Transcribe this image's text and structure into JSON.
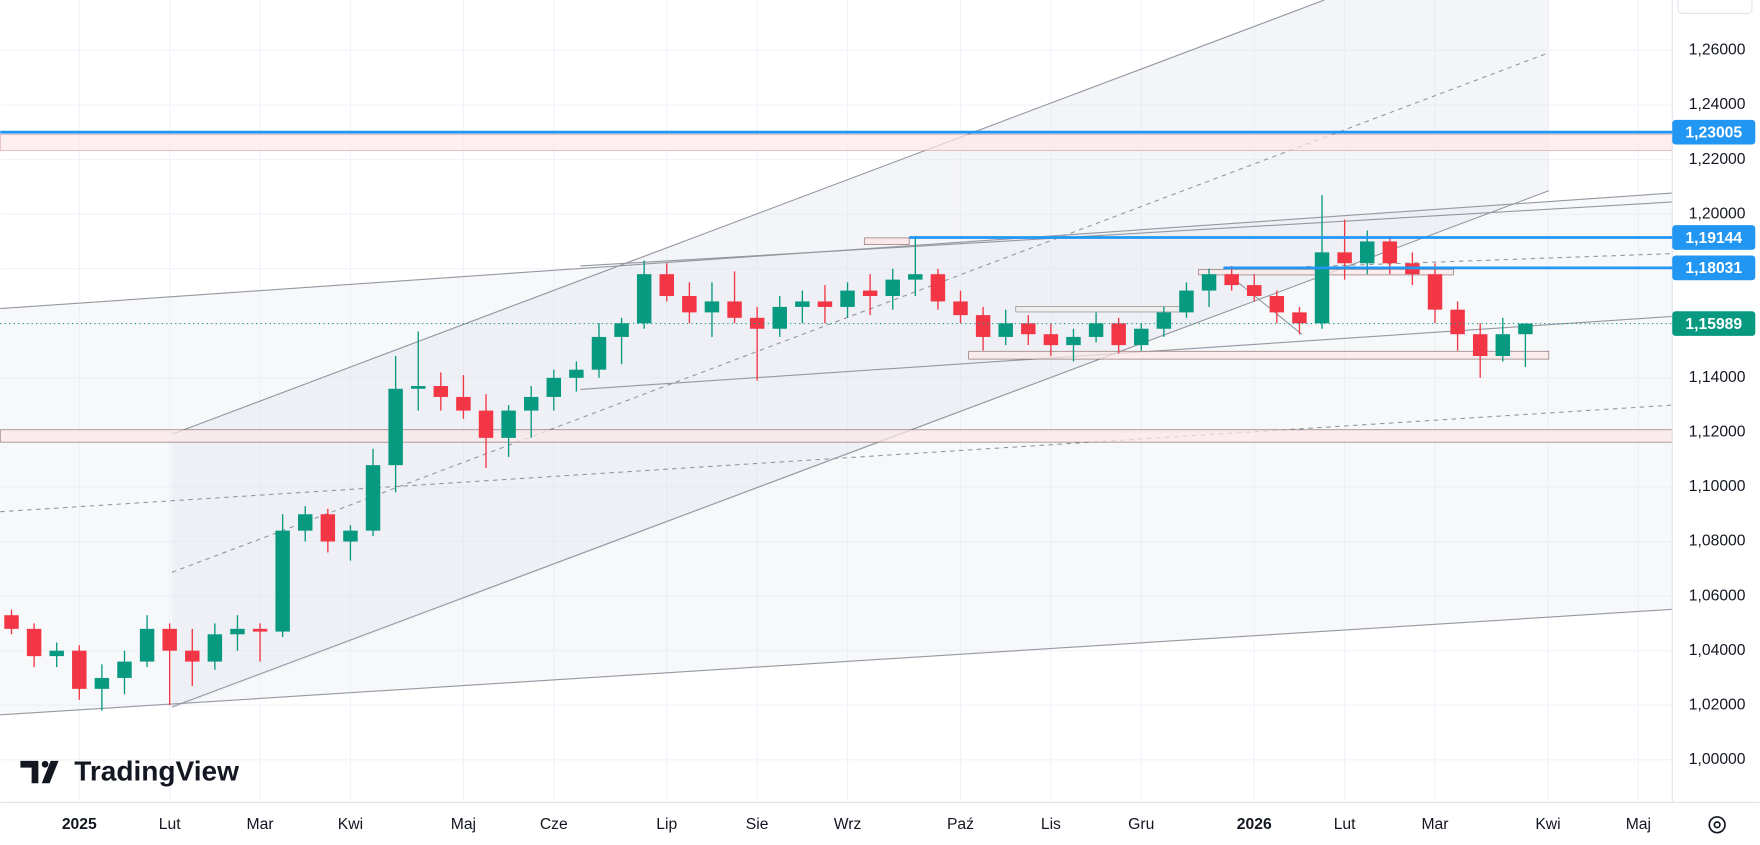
{
  "chart_data": {
    "type": "candlestick",
    "categories": [
      null,
      null,
      null,
      "2025",
      null,
      null,
      null,
      "Lut",
      null,
      null,
      null,
      "Mar",
      null,
      null,
      null,
      "Kwi",
      null,
      null,
      null,
      null,
      "Maj",
      null,
      null,
      null,
      "Cze",
      null,
      null,
      null,
      null,
      "Lip",
      null,
      null,
      null,
      "Sie",
      null,
      null,
      null,
      "Wrz",
      null,
      null,
      null,
      null,
      "Paź",
      null,
      null,
      null,
      "Lis",
      null,
      null,
      null,
      "Gru",
      null,
      null,
      null,
      null,
      "2026",
      null,
      null,
      null,
      "Lut",
      null,
      null,
      null,
      "Mar",
      null,
      null,
      null,
      null,
      "Kwi",
      null,
      null,
      null,
      "Maj",
      null
    ],
    "open": [
      1.053,
      1.048,
      1.038,
      1.04,
      1.026,
      1.03,
      1.036,
      1.048,
      1.04,
      1.036,
      1.046,
      1.048,
      1.047,
      1.084,
      1.09,
      1.08,
      1.084,
      1.108,
      1.136,
      1.137,
      1.133,
      1.128,
      1.118,
      1.128,
      1.133,
      1.14,
      1.143,
      1.155,
      1.16,
      1.178,
      1.17,
      1.164,
      1.168,
      1.162,
      1.158,
      1.166,
      1.168,
      1.166,
      1.172,
      1.17,
      1.176,
      1.178,
      1.168,
      1.163,
      1.155,
      1.16,
      1.156,
      1.152,
      1.155,
      1.16,
      1.152,
      1.158,
      1.164,
      1.172,
      1.178,
      1.174,
      1.17,
      1.164,
      1.16,
      1.186,
      1.182,
      1.19,
      1.182,
      1.178,
      1.165,
      1.156,
      1.148,
      1.156,
      null,
      null,
      null,
      null,
      null,
      null
    ],
    "high": [
      1.055,
      1.05,
      1.043,
      1.042,
      1.035,
      1.04,
      1.053,
      1.05,
      1.048,
      1.05,
      1.053,
      1.05,
      1.09,
      1.093,
      1.092,
      1.086,
      1.114,
      1.148,
      1.157,
      1.142,
      1.141,
      1.134,
      1.13,
      1.137,
      1.143,
      1.146,
      1.16,
      1.162,
      1.183,
      1.182,
      1.175,
      1.175,
      1.179,
      1.166,
      1.17,
      1.172,
      1.174,
      1.175,
      1.178,
      1.18,
      1.192,
      1.18,
      1.172,
      1.166,
      1.165,
      1.163,
      1.16,
      1.158,
      1.164,
      1.162,
      1.16,
      1.166,
      1.175,
      1.18,
      1.181,
      1.178,
      1.172,
      1.166,
      1.207,
      1.198,
      1.194,
      1.192,
      1.186,
      1.182,
      1.168,
      1.16,
      1.162,
      1.16,
      null,
      null,
      null,
      null,
      null,
      null
    ],
    "low": [
      1.046,
      1.034,
      1.034,
      1.022,
      1.018,
      1.024,
      1.034,
      1.02,
      1.027,
      1.033,
      1.04,
      1.036,
      1.045,
      1.08,
      1.076,
      1.073,
      1.082,
      1.098,
      1.128,
      1.128,
      1.125,
      1.107,
      1.111,
      1.118,
      1.128,
      1.135,
      1.14,
      1.145,
      1.158,
      1.168,
      1.16,
      1.155,
      1.16,
      1.139,
      1.155,
      1.16,
      1.16,
      1.162,
      1.163,
      1.165,
      1.17,
      1.165,
      1.16,
      1.15,
      1.152,
      1.152,
      1.148,
      1.146,
      1.153,
      1.149,
      1.15,
      1.155,
      1.162,
      1.166,
      1.172,
      1.168,
      1.16,
      1.156,
      1.158,
      1.176,
      1.178,
      1.178,
      1.174,
      1.16,
      1.15,
      1.14,
      1.146,
      1.144,
      null,
      null,
      null,
      null,
      null,
      null
    ],
    "close": [
      1.048,
      1.038,
      1.04,
      1.026,
      1.03,
      1.036,
      1.048,
      1.04,
      1.036,
      1.046,
      1.048,
      1.047,
      1.084,
      1.09,
      1.08,
      1.084,
      1.108,
      1.136,
      1.137,
      1.133,
      1.128,
      1.118,
      1.128,
      1.133,
      1.14,
      1.143,
      1.155,
      1.16,
      1.178,
      1.17,
      1.164,
      1.168,
      1.162,
      1.158,
      1.166,
      1.168,
      1.166,
      1.172,
      1.17,
      1.176,
      1.178,
      1.168,
      1.163,
      1.155,
      1.16,
      1.156,
      1.152,
      1.155,
      1.16,
      1.152,
      1.158,
      1.164,
      1.172,
      1.178,
      1.174,
      1.17,
      1.164,
      1.16,
      1.186,
      1.182,
      1.19,
      1.182,
      1.178,
      1.165,
      1.156,
      1.148,
      1.156,
      1.15989,
      null,
      null,
      null,
      null,
      null,
      null
    ],
    "up_color": "#089981",
    "down_color": "#f23645",
    "ylim": [
      0.9844,
      1.2785
    ],
    "yticks": [
      {
        "value": 1.0,
        "label": "1,00000"
      },
      {
        "value": 1.02,
        "label": "1,02000"
      },
      {
        "value": 1.04,
        "label": "1,04000"
      },
      {
        "value": 1.06,
        "label": "1,06000"
      },
      {
        "value": 1.08,
        "label": "1,08000"
      },
      {
        "value": 1.1,
        "label": "1,10000"
      },
      {
        "value": 1.12,
        "label": "1,12000"
      },
      {
        "value": 1.14,
        "label": "1,14000"
      },
      {
        "value": 1.16,
        "label": "1,16000"
      },
      {
        "value": 1.18,
        "label": "1,18000"
      },
      {
        "value": 1.2,
        "label": "1,20000"
      },
      {
        "value": 1.22,
        "label": "1,22000"
      },
      {
        "value": 1.24,
        "label": "1,24000"
      },
      {
        "value": 1.26,
        "label": "1,26000"
      }
    ],
    "grid": true,
    "levels": [
      {
        "value": 1.23005,
        "label": "1,23005",
        "color": "#2196f3"
      },
      {
        "value": 1.19144,
        "label": "1,19144",
        "color": "#2196f3"
      },
      {
        "value": 1.18031,
        "label": "1,18031",
        "color": "#2196f3"
      },
      {
        "value": 1.15989,
        "label": "1,15989",
        "color": "#089981"
      }
    ],
    "logo": "TradingView"
  }
}
